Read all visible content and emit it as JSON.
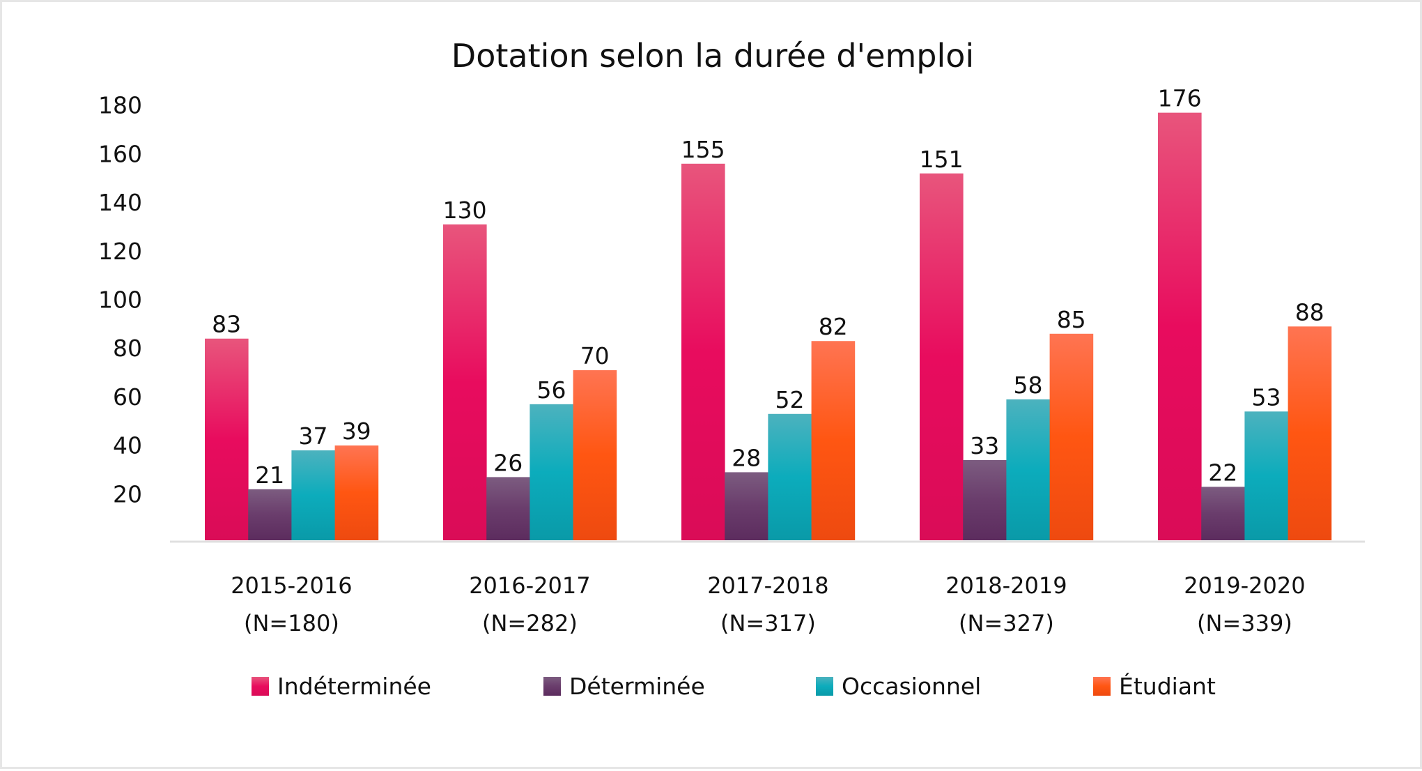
{
  "chart_data": {
    "type": "bar",
    "title": "Dotation selon la durée d'emploi",
    "xlabel": "",
    "ylabel": "",
    "ylim": [
      0,
      180
    ],
    "yticks": [
      20,
      40,
      60,
      80,
      100,
      120,
      140,
      160,
      180
    ],
    "grid": false,
    "legend_position": "bottom",
    "categories": [
      {
        "line1": "2015-2016",
        "line2": "(N=180)"
      },
      {
        "line1": "2016-2017",
        "line2": "(N=282)"
      },
      {
        "line1": "2017-2018",
        "line2": "(N=317)"
      },
      {
        "line1": "2018-2019",
        "line2": "(N=327)"
      },
      {
        "line1": "2019-2020",
        "line2": "(N=339)"
      }
    ],
    "series": [
      {
        "name": "Indéterminée",
        "values": [
          83,
          130,
          155,
          151,
          176
        ],
        "color_top": "#e8557c",
        "color_mid": "#e80c5e",
        "color_bottom": "#da0c57"
      },
      {
        "name": "Déterminée",
        "values": [
          21,
          26,
          28,
          33,
          22
        ],
        "color_top": "#7c5c80",
        "color_mid": "#6a3d6c",
        "color_bottom": "#5c2c5e"
      },
      {
        "name": "Occasionnel",
        "values": [
          37,
          56,
          52,
          58,
          53
        ],
        "color_top": "#4cb2be",
        "color_mid": "#0cacbc",
        "color_bottom": "#0a9aa8"
      },
      {
        "name": "Étudiant",
        "values": [
          39,
          70,
          82,
          85,
          88
        ],
        "color_top": "#ff7452",
        "color_mid": "#ff5612",
        "color_bottom": "#ee4a10"
      }
    ]
  },
  "colors": {
    "axis_line": "#e0e0e0",
    "frame_border": "#e6e6e6",
    "text": "#111111"
  }
}
